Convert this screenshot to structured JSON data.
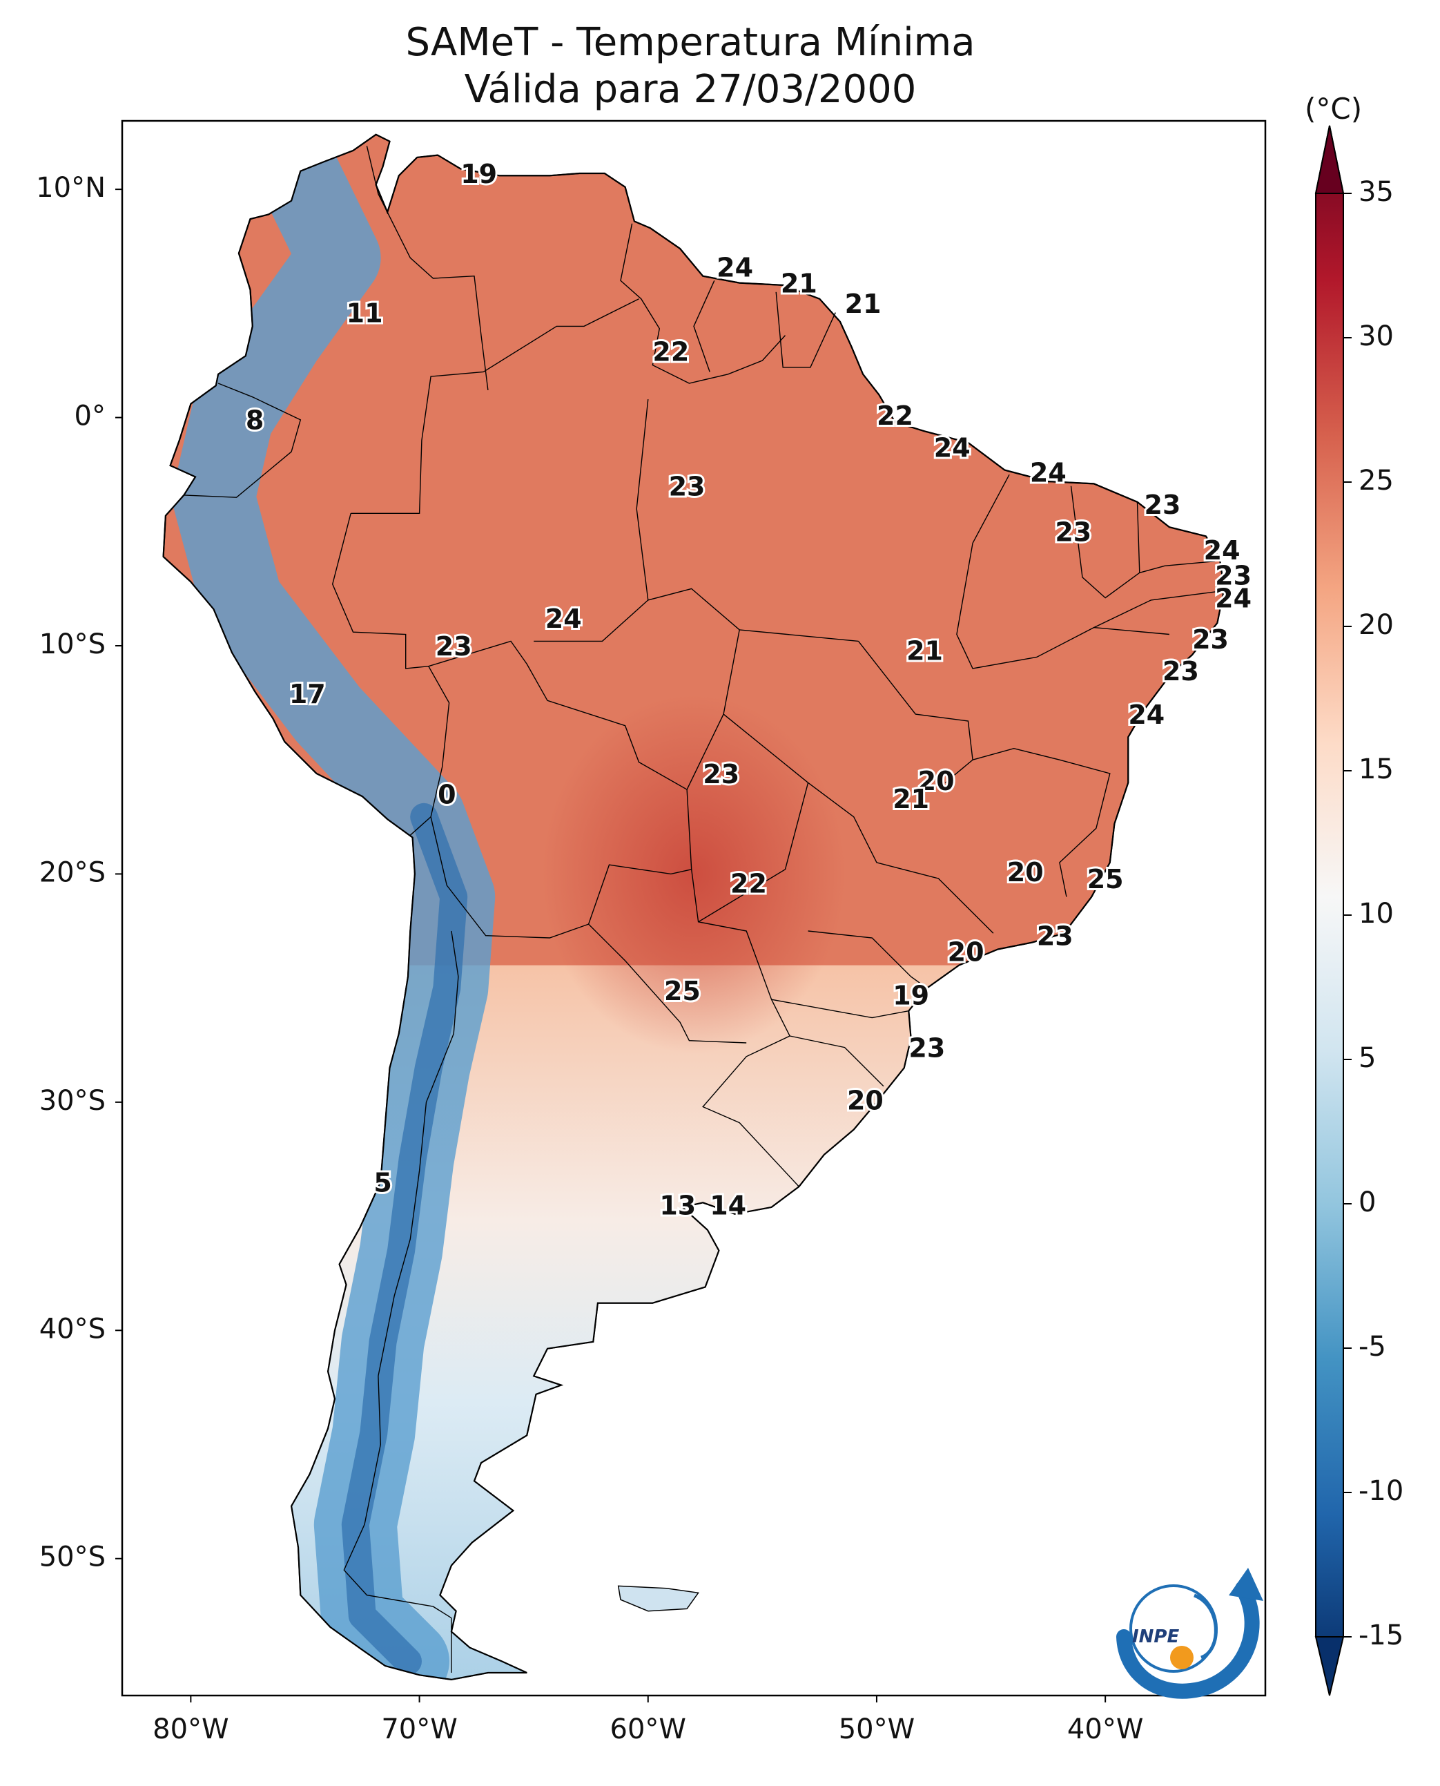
{
  "title": {
    "line1": "SAMeT - Temperatura Mínima",
    "line2": "Válida para 27/03/2000"
  },
  "colorbar": {
    "units": "(°C)",
    "ticks": [
      "35",
      "30",
      "25",
      "20",
      "15",
      "10",
      "5",
      "0",
      "-5",
      "-10",
      "-15"
    ],
    "min": -15,
    "max": 35
  },
  "axes": {
    "lon_ticks": [
      "80°W",
      "70°W",
      "60°W",
      "50°W",
      "40°W"
    ],
    "lat_ticks": [
      "10°N",
      "0°",
      "10°S",
      "20°S",
      "30°S",
      "40°S",
      "50°S"
    ]
  },
  "contour_labels": [
    {
      "text": "19",
      "lon": -67.4,
      "lat": 10.6
    },
    {
      "text": "24",
      "lon": -56.2,
      "lat": 6.5
    },
    {
      "text": "21",
      "lon": -53.4,
      "lat": 5.8
    },
    {
      "text": "21",
      "lon": -50.6,
      "lat": 4.9
    },
    {
      "text": "11",
      "lon": -72.4,
      "lat": 4.5
    },
    {
      "text": "22",
      "lon": -59.0,
      "lat": 2.8
    },
    {
      "text": "8",
      "lon": -77.2,
      "lat": -0.2
    },
    {
      "text": "22",
      "lon": -49.2,
      "lat": 0.0
    },
    {
      "text": "24",
      "lon": -46.7,
      "lat": -1.4
    },
    {
      "text": "24",
      "lon": -42.5,
      "lat": -2.5
    },
    {
      "text": "23",
      "lon": -58.3,
      "lat": -3.1
    },
    {
      "text": "23",
      "lon": -37.5,
      "lat": -3.9
    },
    {
      "text": "23",
      "lon": -41.4,
      "lat": -5.1
    },
    {
      "text": "24",
      "lon": -34.9,
      "lat": -5.9
    },
    {
      "text": "23",
      "lon": -34.4,
      "lat": -7.0
    },
    {
      "text": "24",
      "lon": -34.4,
      "lat": -8.0
    },
    {
      "text": "24",
      "lon": -63.7,
      "lat": -8.9
    },
    {
      "text": "23",
      "lon": -68.5,
      "lat": -10.1
    },
    {
      "text": "23",
      "lon": -35.4,
      "lat": -9.8
    },
    {
      "text": "21",
      "lon": -47.9,
      "lat": -10.3
    },
    {
      "text": "23",
      "lon": -36.7,
      "lat": -11.2
    },
    {
      "text": "17",
      "lon": -74.9,
      "lat": -12.2
    },
    {
      "text": "24",
      "lon": -38.2,
      "lat": -13.1
    },
    {
      "text": "23",
      "lon": -56.8,
      "lat": -15.7
    },
    {
      "text": "20",
      "lon": -47.4,
      "lat": -16.0
    },
    {
      "text": "21",
      "lon": -48.5,
      "lat": -16.8
    },
    {
      "text": "0",
      "lon": -68.8,
      "lat": -16.6
    },
    {
      "text": "20",
      "lon": -43.5,
      "lat": -20.0
    },
    {
      "text": "22",
      "lon": -55.6,
      "lat": -20.5
    },
    {
      "text": "25",
      "lon": -40.0,
      "lat": -20.3
    },
    {
      "text": "23",
      "lon": -42.2,
      "lat": -22.8
    },
    {
      "text": "20",
      "lon": -46.1,
      "lat": -23.5
    },
    {
      "text": "25",
      "lon": -58.5,
      "lat": -25.2
    },
    {
      "text": "19",
      "lon": -48.5,
      "lat": -25.4
    },
    {
      "text": "23",
      "lon": -47.8,
      "lat": -27.7
    },
    {
      "text": "20",
      "lon": -50.5,
      "lat": -30.0
    },
    {
      "text": "5",
      "lon": -71.6,
      "lat": -33.6
    },
    {
      "text": "13",
      "lon": -58.7,
      "lat": -34.6
    },
    {
      "text": "14",
      "lon": -56.5,
      "lat": -34.6
    }
  ],
  "colors": {
    "ocean": "#ffffff",
    "border": "#000000",
    "cmap": [
      "#08306b",
      "#2166ac",
      "#4393c3",
      "#92c5de",
      "#d1e5f0",
      "#f7f7f7",
      "#fddbc7",
      "#f4a582",
      "#d6604d",
      "#b2182b",
      "#67001f"
    ]
  },
  "logo": {
    "text": "INPE"
  }
}
